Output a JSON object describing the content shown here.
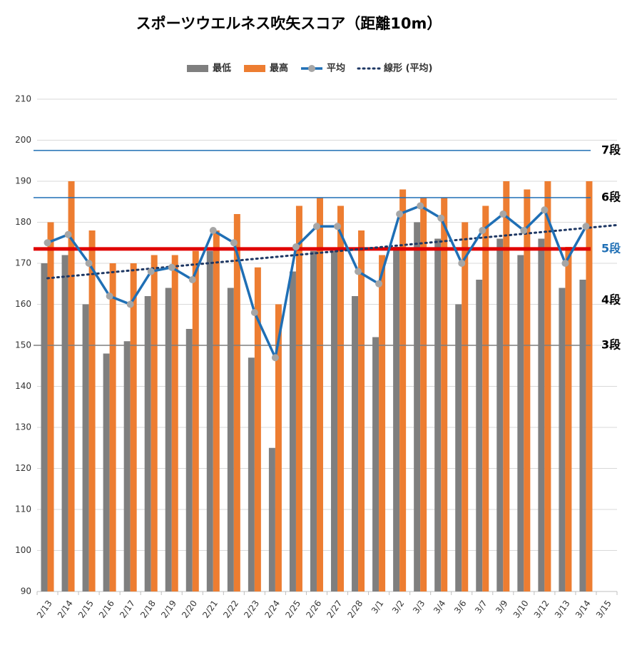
{
  "chart_data": {
    "type": "bar_line",
    "title": "スポーツウエルネス吹矢スコア（距離10m）",
    "categories": [
      "2/13",
      "2/14",
      "2/15",
      "2/16",
      "2/17",
      "2/18",
      "2/19",
      "2/20",
      "2/21",
      "2/22",
      "2/23",
      "2/24",
      "2/25",
      "2/26",
      "2/27",
      "2/28",
      "3/1",
      "3/2",
      "3/3",
      "3/4",
      "3/6",
      "3/7",
      "3/9",
      "3/10",
      "3/12",
      "3/13",
      "3/14",
      "3/15"
    ],
    "series": [
      {
        "name": "最低",
        "kind": "bar",
        "color": "#7f7f7f",
        "values": [
          170,
          172,
          160,
          148,
          151,
          162,
          164,
          154,
          173,
          164,
          147,
          125,
          168,
          173,
          173,
          162,
          152,
          174,
          180,
          176,
          160,
          166,
          176,
          172,
          176,
          164,
          166,
          null
        ]
      },
      {
        "name": "最高",
        "kind": "bar",
        "color": "#ed7d31",
        "values": [
          180,
          190,
          178,
          170,
          170,
          172,
          172,
          173,
          178,
          182,
          169,
          160,
          184,
          186,
          184,
          178,
          172,
          188,
          186,
          186,
          180,
          184,
          190,
          188,
          190,
          174,
          190,
          null
        ]
      },
      {
        "name": "平均",
        "kind": "line",
        "color": "#1f6fb5",
        "marker_color": "#a6a6a6",
        "values": [
          175,
          177,
          170,
          162,
          160,
          168,
          169,
          166,
          178,
          175,
          158,
          147,
          174,
          179,
          179,
          168,
          165,
          182,
          184,
          181,
          170,
          178,
          182,
          178,
          183,
          170,
          179,
          null
        ]
      }
    ],
    "trendline": {
      "name": "線形 (平均)",
      "color": "#1f3864",
      "of": "平均"
    },
    "reference_lines": [
      {
        "label": "7段",
        "value": 197.5,
        "color": "#1f6fb5",
        "label_color": "#000000"
      },
      {
        "label": "6段",
        "value": 186,
        "color": "#1f6fb5",
        "label_color": "#000000"
      },
      {
        "label": "5段",
        "value": 173.5,
        "color": "#e00000",
        "label_color": "#1f6fb5"
      },
      {
        "label": "4段",
        "value": 161,
        "color": null,
        "label_color": "#000000"
      },
      {
        "label": "3段",
        "value": 150,
        "color": "#7f7f7f",
        "label_color": "#000000"
      }
    ],
    "ylim": [
      90,
      210
    ],
    "yticks": [
      90,
      100,
      110,
      120,
      130,
      140,
      150,
      160,
      170,
      180,
      190,
      200,
      210
    ],
    "grid": true
  }
}
